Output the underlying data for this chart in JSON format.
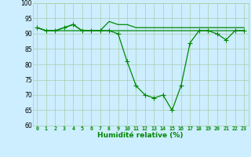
{
  "x": [
    0,
    1,
    2,
    3,
    4,
    5,
    6,
    7,
    8,
    9,
    10,
    11,
    12,
    13,
    14,
    15,
    16,
    17,
    18,
    19,
    20,
    21,
    22,
    23
  ],
  "y_main": [
    92,
    91,
    91,
    92,
    93,
    91,
    91,
    91,
    91,
    90,
    81,
    73,
    70,
    69,
    70,
    65,
    73,
    87,
    91,
    91,
    90,
    88,
    91,
    91
  ],
  "y_flat": [
    92,
    91,
    91,
    91,
    91,
    91,
    91,
    91,
    91,
    91,
    91,
    91,
    91,
    91,
    91,
    91,
    91,
    91,
    91,
    91,
    91,
    91,
    91,
    91
  ],
  "y_upper": [
    92,
    91,
    91,
    92,
    93,
    91,
    91,
    91,
    94,
    93,
    93,
    92,
    92,
    92,
    92,
    92,
    92,
    92,
    92,
    92,
    92,
    92,
    92,
    92
  ],
  "line_color": "#008800",
  "bg_color": "#cceeff",
  "grid_color": "#aaccaa",
  "xlabel": "Humidité relative (%)",
  "ylim": [
    60,
    100
  ],
  "xlim_min": -0.5,
  "xlim_max": 23.5,
  "yticks": [
    60,
    65,
    70,
    75,
    80,
    85,
    90,
    95,
    100
  ],
  "xticks": [
    0,
    1,
    2,
    3,
    4,
    5,
    6,
    7,
    8,
    9,
    10,
    11,
    12,
    13,
    14,
    15,
    16,
    17,
    18,
    19,
    20,
    21,
    22,
    23
  ],
  "xlabel_fontsize": 6.5,
  "xtick_fontsize": 4.8,
  "ytick_fontsize": 5.5,
  "linewidth": 0.9,
  "marker_size": 2.0
}
